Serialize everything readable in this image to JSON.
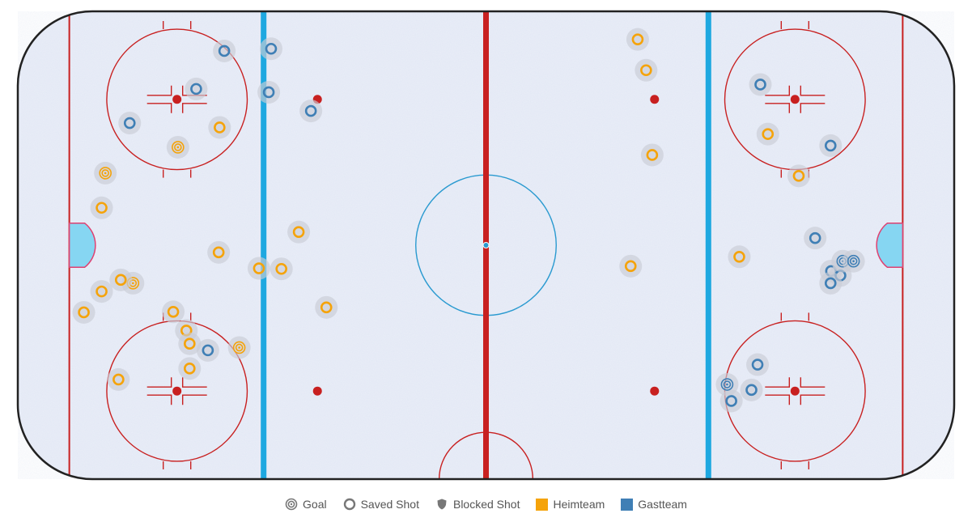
{
  "chart_data": {
    "type": "scatter",
    "title": "",
    "xlabel": "",
    "ylabel": "",
    "x_unit": "ft",
    "y_unit": "ft",
    "xlim": [
      -100,
      100
    ],
    "ylim": [
      -42.5,
      42.5
    ],
    "colors": {
      "Heimteam": "#f5a30a",
      "Gastteam": "#3f7fb5"
    },
    "series": [
      {
        "name": "Heimteam",
        "points": [
          {
            "x": -81.3,
            "y": 13.1,
            "result": "Goal"
          },
          {
            "x": -65.8,
            "y": 17.8,
            "result": "Goal"
          },
          {
            "x": -75.4,
            "y": -6.9,
            "result": "Goal"
          },
          {
            "x": -52.7,
            "y": -18.6,
            "result": "Goal"
          },
          {
            "x": -56.9,
            "y": 21.4,
            "result": "Saved Shot"
          },
          {
            "x": -82.1,
            "y": 6.8,
            "result": "Saved Shot"
          },
          {
            "x": -57.1,
            "y": -1.3,
            "result": "Saved Shot"
          },
          {
            "x": -48.5,
            "y": -4.2,
            "result": "Saved Shot"
          },
          {
            "x": -43.7,
            "y": -4.3,
            "result": "Saved Shot"
          },
          {
            "x": -40.0,
            "y": 2.4,
            "result": "Saved Shot"
          },
          {
            "x": -78.0,
            "y": -6.3,
            "result": "Saved Shot"
          },
          {
            "x": -82.1,
            "y": -8.4,
            "result": "Saved Shot"
          },
          {
            "x": -85.9,
            "y": -12.2,
            "result": "Saved Shot"
          },
          {
            "x": -66.8,
            "y": -12.1,
            "result": "Saved Shot"
          },
          {
            "x": -64.0,
            "y": -15.5,
            "result": "Saved Shot"
          },
          {
            "x": -63.3,
            "y": -17.9,
            "result": "Saved Shot"
          },
          {
            "x": -63.3,
            "y": -22.4,
            "result": "Saved Shot"
          },
          {
            "x": -78.5,
            "y": -24.4,
            "result": "Saved Shot"
          },
          {
            "x": -34.1,
            "y": -11.3,
            "result": "Saved Shot"
          },
          {
            "x": 32.4,
            "y": 37.4,
            "result": "Saved Shot"
          },
          {
            "x": 34.2,
            "y": 31.8,
            "result": "Saved Shot"
          },
          {
            "x": 35.5,
            "y": 16.4,
            "result": "Saved Shot"
          },
          {
            "x": 60.2,
            "y": 20.2,
            "result": "Saved Shot"
          },
          {
            "x": 66.8,
            "y": 12.6,
            "result": "Saved Shot"
          },
          {
            "x": 30.9,
            "y": -3.8,
            "result": "Saved Shot"
          },
          {
            "x": 54.1,
            "y": -2.1,
            "result": "Saved Shot"
          }
        ]
      },
      {
        "name": "Gastteam",
        "points": [
          {
            "x": -45.9,
            "y": 35.7,
            "result": "Saved Shot"
          },
          {
            "x": -55.9,
            "y": 35.3,
            "result": "Saved Shot"
          },
          {
            "x": -61.9,
            "y": 28.4,
            "result": "Saved Shot"
          },
          {
            "x": -46.4,
            "y": 27.8,
            "result": "Saved Shot"
          },
          {
            "x": -37.4,
            "y": 24.4,
            "result": "Saved Shot"
          },
          {
            "x": -76.1,
            "y": 22.2,
            "result": "Saved Shot"
          },
          {
            "x": -59.4,
            "y": -19.1,
            "result": "Saved Shot"
          },
          {
            "x": 58.6,
            "y": 29.2,
            "result": "Saved Shot"
          },
          {
            "x": 73.6,
            "y": 18.1,
            "result": "Saved Shot"
          },
          {
            "x": 70.3,
            "y": 1.3,
            "result": "Saved Shot"
          },
          {
            "x": 73.7,
            "y": -4.7,
            "result": "Saved Shot"
          },
          {
            "x": 75.7,
            "y": -5.5,
            "result": "Saved Shot"
          },
          {
            "x": 73.6,
            "y": -6.9,
            "result": "Saved Shot"
          },
          {
            "x": 58.0,
            "y": -21.7,
            "result": "Saved Shot"
          },
          {
            "x": 56.7,
            "y": -26.3,
            "result": "Saved Shot"
          },
          {
            "x": 52.4,
            "y": -28.3,
            "result": "Saved Shot"
          },
          {
            "x": 76.2,
            "y": -2.9,
            "result": "Goal"
          },
          {
            "x": 78.5,
            "y": -2.9,
            "result": "Goal"
          },
          {
            "x": 51.5,
            "y": -25.3,
            "result": "Goal"
          }
        ]
      }
    ],
    "legend": {
      "position": "bottom",
      "items": [
        {
          "label": "Goal",
          "icon": "goal-icon"
        },
        {
          "label": "Saved Shot",
          "icon": "saved-shot-icon"
        },
        {
          "label": "Blocked Shot",
          "icon": "blocked-shot-icon"
        },
        {
          "label": "Heimteam",
          "icon": "square-swatch",
          "color": "#f5a30a"
        },
        {
          "label": "Gastteam",
          "icon": "square-swatch",
          "color": "#3f7fb5"
        }
      ]
    },
    "grid": false
  },
  "rink_colors": {
    "ice": "#eaeef8",
    "boards": "#222222",
    "red_line": "#c82020",
    "blue_line": "#1ea8e0",
    "crease": "#86d6f2",
    "center_circle": "#2a9ad0",
    "marker_halo": "#c9cdd6"
  }
}
